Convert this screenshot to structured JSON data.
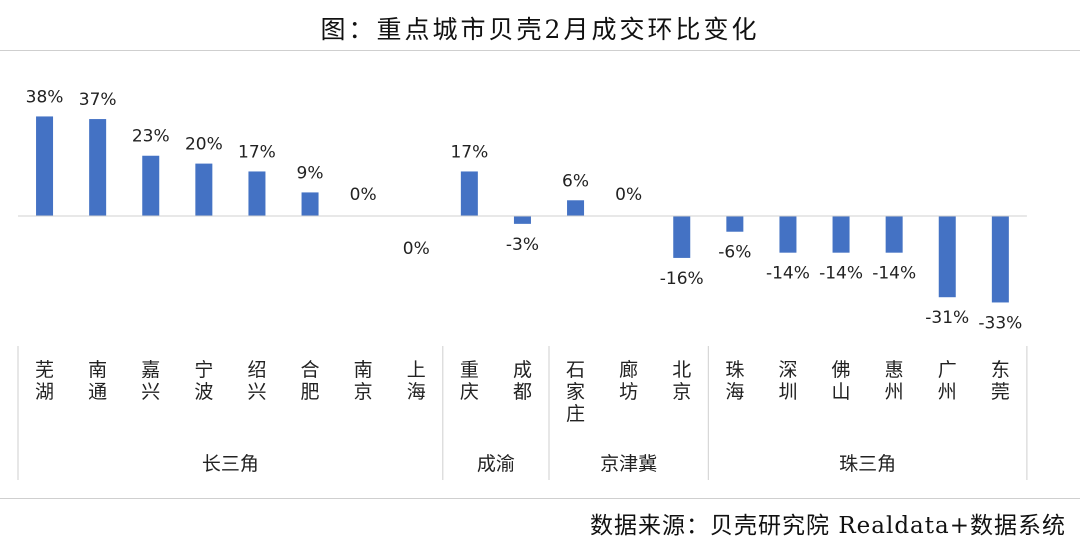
{
  "chart_data": {
    "type": "bar",
    "title": "图：重点城市贝壳2月成交环比变化",
    "source": "数据来源：贝壳研究院 Realdata+数据系统",
    "categories": [
      "芜湖",
      "南通",
      "嘉兴",
      "宁波",
      "绍兴",
      "合肥",
      "南京",
      "上海",
      "重庆",
      "成都",
      "石家庄",
      "廊坊",
      "北京",
      "珠海",
      "深圳",
      "佛山",
      "惠州",
      "广州",
      "东莞"
    ],
    "values": [
      38,
      37,
      23,
      20,
      17,
      9,
      0,
      0,
      17,
      -3,
      6,
      0,
      -16,
      -6,
      -14,
      -14,
      -14,
      -31,
      -33
    ],
    "value_labels": [
      "38%",
      "37%",
      "23%",
      "20%",
      "17%",
      "9%",
      "0%",
      "0%",
      "17%",
      "-3%",
      "6%",
      "0%",
      "-16%",
      "-6%",
      "-14%",
      "-14%",
      "-14%",
      "-31%",
      "-33%"
    ],
    "groups": [
      {
        "name": "长三角",
        "start": 0,
        "end": 7
      },
      {
        "name": "成渝",
        "start": 8,
        "end": 9
      },
      {
        "name": "京津冀",
        "start": 10,
        "end": 12
      },
      {
        "name": "珠三角",
        "start": 13,
        "end": 18
      }
    ],
    "ylim": [
      -40,
      40
    ],
    "xlabel": "",
    "ylabel": "",
    "bar_color": "#4472c4",
    "grid": false
  }
}
